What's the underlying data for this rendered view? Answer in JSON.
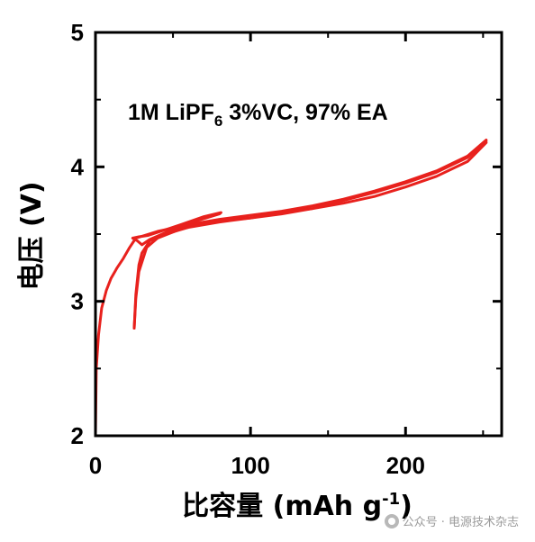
{
  "chart_data": {
    "type": "line",
    "annotation": {
      "main": "1M LiPF",
      "sub": "6",
      "rest": " 3%VC, 97% EA"
    },
    "xlabel": {
      "text": "比容量 (mAh g",
      "sup": "-1",
      "close": ")"
    },
    "ylabel": "电压 (V)",
    "xlim": [
      0,
      262
    ],
    "ylim": [
      2,
      5
    ],
    "x_ticks": [
      0,
      100,
      200
    ],
    "y_ticks": [
      2,
      3,
      4,
      5
    ],
    "color": "#e8211d",
    "series": [
      {
        "x": [
          0,
          0.5,
          2,
          4,
          7,
          10,
          14,
          18,
          22,
          26,
          40,
          60,
          80,
          100,
          120,
          140,
          160,
          180,
          200,
          220,
          240,
          252
        ],
        "y": [
          2.0,
          2.5,
          2.75,
          2.95,
          3.08,
          3.17,
          3.25,
          3.32,
          3.4,
          3.47,
          3.52,
          3.57,
          3.61,
          3.64,
          3.67,
          3.71,
          3.76,
          3.82,
          3.89,
          3.97,
          4.08,
          4.2
        ]
      },
      {
        "x": [
          252,
          240,
          220,
          200,
          180,
          160,
          140,
          120,
          100,
          80,
          60,
          40,
          33,
          28,
          26,
          25
        ],
        "y": [
          4.18,
          4.04,
          3.93,
          3.85,
          3.78,
          3.73,
          3.69,
          3.66,
          3.62,
          3.6,
          3.56,
          3.47,
          3.4,
          3.22,
          3.02,
          2.8
        ]
      },
      {
        "x": [
          25,
          26,
          28,
          30,
          35,
          45,
          60,
          80,
          100,
          120,
          140,
          160,
          180,
          200,
          220,
          240,
          252
        ],
        "y": [
          2.8,
          3.05,
          3.27,
          3.36,
          3.45,
          3.5,
          3.55,
          3.59,
          3.62,
          3.65,
          3.69,
          3.75,
          3.81,
          3.88,
          3.96,
          4.07,
          4.19
        ]
      },
      {
        "x": [
          24,
          27,
          30,
          35,
          45,
          60,
          80,
          81,
          70,
          55,
          42,
          34,
          28,
          24
        ],
        "y": [
          3.47,
          3.45,
          3.42,
          3.46,
          3.51,
          3.58,
          3.65,
          3.66,
          3.63,
          3.57,
          3.52,
          3.49,
          3.48,
          3.47
        ]
      }
    ]
  },
  "watermark": "公众号 · 电源技术杂志"
}
